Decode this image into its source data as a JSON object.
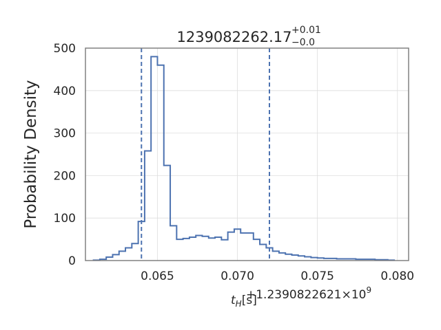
{
  "chart_data": {
    "type": "step",
    "title": {
      "base": "1239082262.17",
      "sup": "+0.01",
      "sub": "−0.0"
    },
    "xlabel": {
      "var": "t",
      "var_sub": "H",
      "unit": "[s]"
    },
    "offset_text": "+1.2390822621×10",
    "offset_exp": "9",
    "ylabel": "Probability Density",
    "xlim": [
      0.0605,
      0.0807
    ],
    "ylim": [
      0,
      500
    ],
    "xticks": [
      {
        "value": 0.065,
        "label": "0.065"
      },
      {
        "value": 0.07,
        "label": "0.070"
      },
      {
        "value": 0.075,
        "label": "0.075"
      },
      {
        "value": 0.08,
        "label": "0.080"
      }
    ],
    "yticks": [
      {
        "value": 0,
        "label": "0"
      },
      {
        "value": 100,
        "label": "100"
      },
      {
        "value": 200,
        "label": "200"
      },
      {
        "value": 300,
        "label": "300"
      },
      {
        "value": 400,
        "label": "400"
      },
      {
        "value": 500,
        "label": "500"
      }
    ],
    "grid": true,
    "bin_edges": [
      0.061,
      0.0614,
      0.0618,
      0.0622,
      0.0626,
      0.063,
      0.0634,
      0.0638,
      0.0642,
      0.0646,
      0.065,
      0.0654,
      0.0658,
      0.0662,
      0.0666,
      0.067,
      0.0674,
      0.0678,
      0.0682,
      0.0686,
      0.069,
      0.0694,
      0.0698,
      0.0702,
      0.0706,
      0.071,
      0.0714,
      0.0718,
      0.0722,
      0.0726,
      0.073,
      0.0734,
      0.0738,
      0.0742,
      0.0746,
      0.075,
      0.0754,
      0.0758,
      0.0762,
      0.0766,
      0.077,
      0.0774,
      0.0778,
      0.0782,
      0.0786,
      0.079,
      0.0794,
      0.0798
    ],
    "densities": [
      1,
      3,
      8,
      14,
      22,
      30,
      40,
      92,
      258,
      480,
      460,
      224,
      82,
      50,
      52,
      55,
      59,
      57,
      53,
      55,
      49,
      67,
      74,
      65,
      65,
      50,
      38,
      30,
      22,
      18,
      15,
      13,
      11,
      9,
      7,
      6,
      5,
      5,
      4,
      4,
      4,
      3,
      3,
      3,
      2,
      2,
      1
    ],
    "vlines": [
      0.064,
      0.072
    ],
    "colors": {
      "line": "#4c72b0",
      "grid": "#dddddd",
      "spine": "#808080",
      "text": "#262626"
    }
  }
}
